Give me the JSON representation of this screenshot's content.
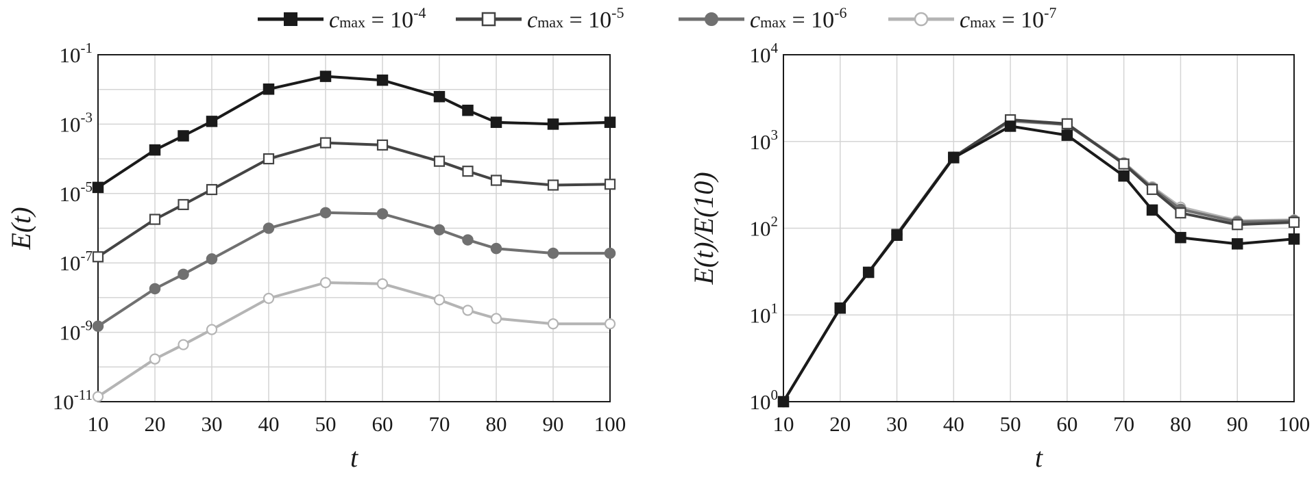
{
  "legend": [
    {
      "prefix": "c",
      "sub": "max",
      "eq": " = 10",
      "sup": "-4"
    },
    {
      "prefix": "c",
      "sub": "max",
      "eq": " = 10",
      "sup": "-5"
    },
    {
      "prefix": "c",
      "sub": "max",
      "eq": " = 10",
      "sup": "-6"
    },
    {
      "prefix": "c",
      "sub": "max",
      "eq": " = 10",
      "sup": "-7"
    }
  ],
  "series_styles": [
    {
      "color": "#1a1a1a",
      "marker": "square-filled"
    },
    {
      "color": "#444444",
      "marker": "square-open"
    },
    {
      "color": "#707070",
      "marker": "circle-filled"
    },
    {
      "color": "#b4b4b4",
      "marker": "circle-open"
    }
  ],
  "chart_data": [
    {
      "type": "line",
      "yscale": "log",
      "xlabel": "t",
      "ylabel": "E(t)",
      "xlim": [
        10,
        100
      ],
      "ylim_exp": [
        -11,
        -1
      ],
      "xticks": [
        "10",
        "20",
        "30",
        "40",
        "50",
        "60",
        "70",
        "80",
        "90",
        "100"
      ],
      "yticks": [
        {
          "base": "10",
          "exp": "-1"
        },
        {
          "base": "10",
          "exp": "-3"
        },
        {
          "base": "10",
          "exp": "-5"
        },
        {
          "base": "10",
          "exp": "-7"
        },
        {
          "base": "10",
          "exp": "-9"
        },
        {
          "base": "10",
          "exp": "-11"
        }
      ],
      "x": [
        10,
        20,
        25,
        30,
        40,
        50,
        60,
        70,
        75,
        80,
        90,
        100
      ],
      "series": [
        {
          "name": "c_max = 10^-4",
          "values": [
            1.5e-05,
            0.00018,
            0.00046,
            0.0012,
            0.0102,
            0.0238,
            0.0185,
            0.0062,
            0.0025,
            0.00113,
            0.001,
            0.00113
          ]
        },
        {
          "name": "c_max = 10^-5",
          "values": [
            1.5e-07,
            1.8e-06,
            4.8e-06,
            1.3e-05,
            0.0001,
            0.00029,
            0.00025,
            8.5e-05,
            4.4e-05,
            2.4e-05,
            1.75e-05,
            1.85e-05
          ]
        },
        {
          "name": "c_max = 10^-6",
          "values": [
            1.5e-09,
            1.8e-08,
            4.7e-08,
            1.3e-07,
            1e-06,
            2.8e-06,
            2.6e-06,
            9e-07,
            4.6e-07,
            2.6e-07,
            1.9e-07,
            1.9e-07
          ]
        },
        {
          "name": "c_max = 10^-7",
          "values": [
            1.4e-11,
            1.7e-10,
            4.4e-10,
            1.2e-09,
            9.5e-09,
            2.7e-08,
            2.5e-08,
            8.6e-09,
            4.3e-09,
            2.5e-09,
            1.75e-09,
            1.75e-09
          ]
        }
      ]
    },
    {
      "type": "line",
      "yscale": "log",
      "xlabel": "t",
      "ylabel": "E(t)/E(10)",
      "xlim": [
        10,
        100
      ],
      "ylim_exp": [
        0,
        4
      ],
      "xticks": [
        "10",
        "20",
        "30",
        "40",
        "50",
        "60",
        "70",
        "80",
        "90",
        "100"
      ],
      "yticks": [
        {
          "base": "10",
          "exp": "4"
        },
        {
          "base": "10",
          "exp": "3"
        },
        {
          "base": "10",
          "exp": "2"
        },
        {
          "base": "10",
          "exp": "1"
        },
        {
          "base": "10",
          "exp": "0"
        }
      ],
      "x": [
        10,
        20,
        25,
        30,
        40,
        50,
        60,
        70,
        75,
        80,
        90,
        100
      ],
      "series": [
        {
          "name": "c_max = 10^-4",
          "values": [
            1,
            12,
            31,
            83,
            650,
            1500,
            1180,
            400,
            162,
            78,
            66,
            75
          ]
        },
        {
          "name": "c_max = 10^-5",
          "values": [
            1,
            12,
            31,
            85,
            660,
            1780,
            1600,
            550,
            280,
            150,
            110,
            117
          ]
        },
        {
          "name": "c_max = 10^-6",
          "values": [
            1,
            12,
            31,
            85,
            660,
            1750,
            1560,
            560,
            290,
            165,
            118,
            122
          ]
        },
        {
          "name": "c_max = 10^-7",
          "values": [
            1,
            12,
            31,
            85,
            660,
            1700,
            1580,
            570,
            300,
            175,
            122,
            125
          ]
        }
      ]
    }
  ]
}
